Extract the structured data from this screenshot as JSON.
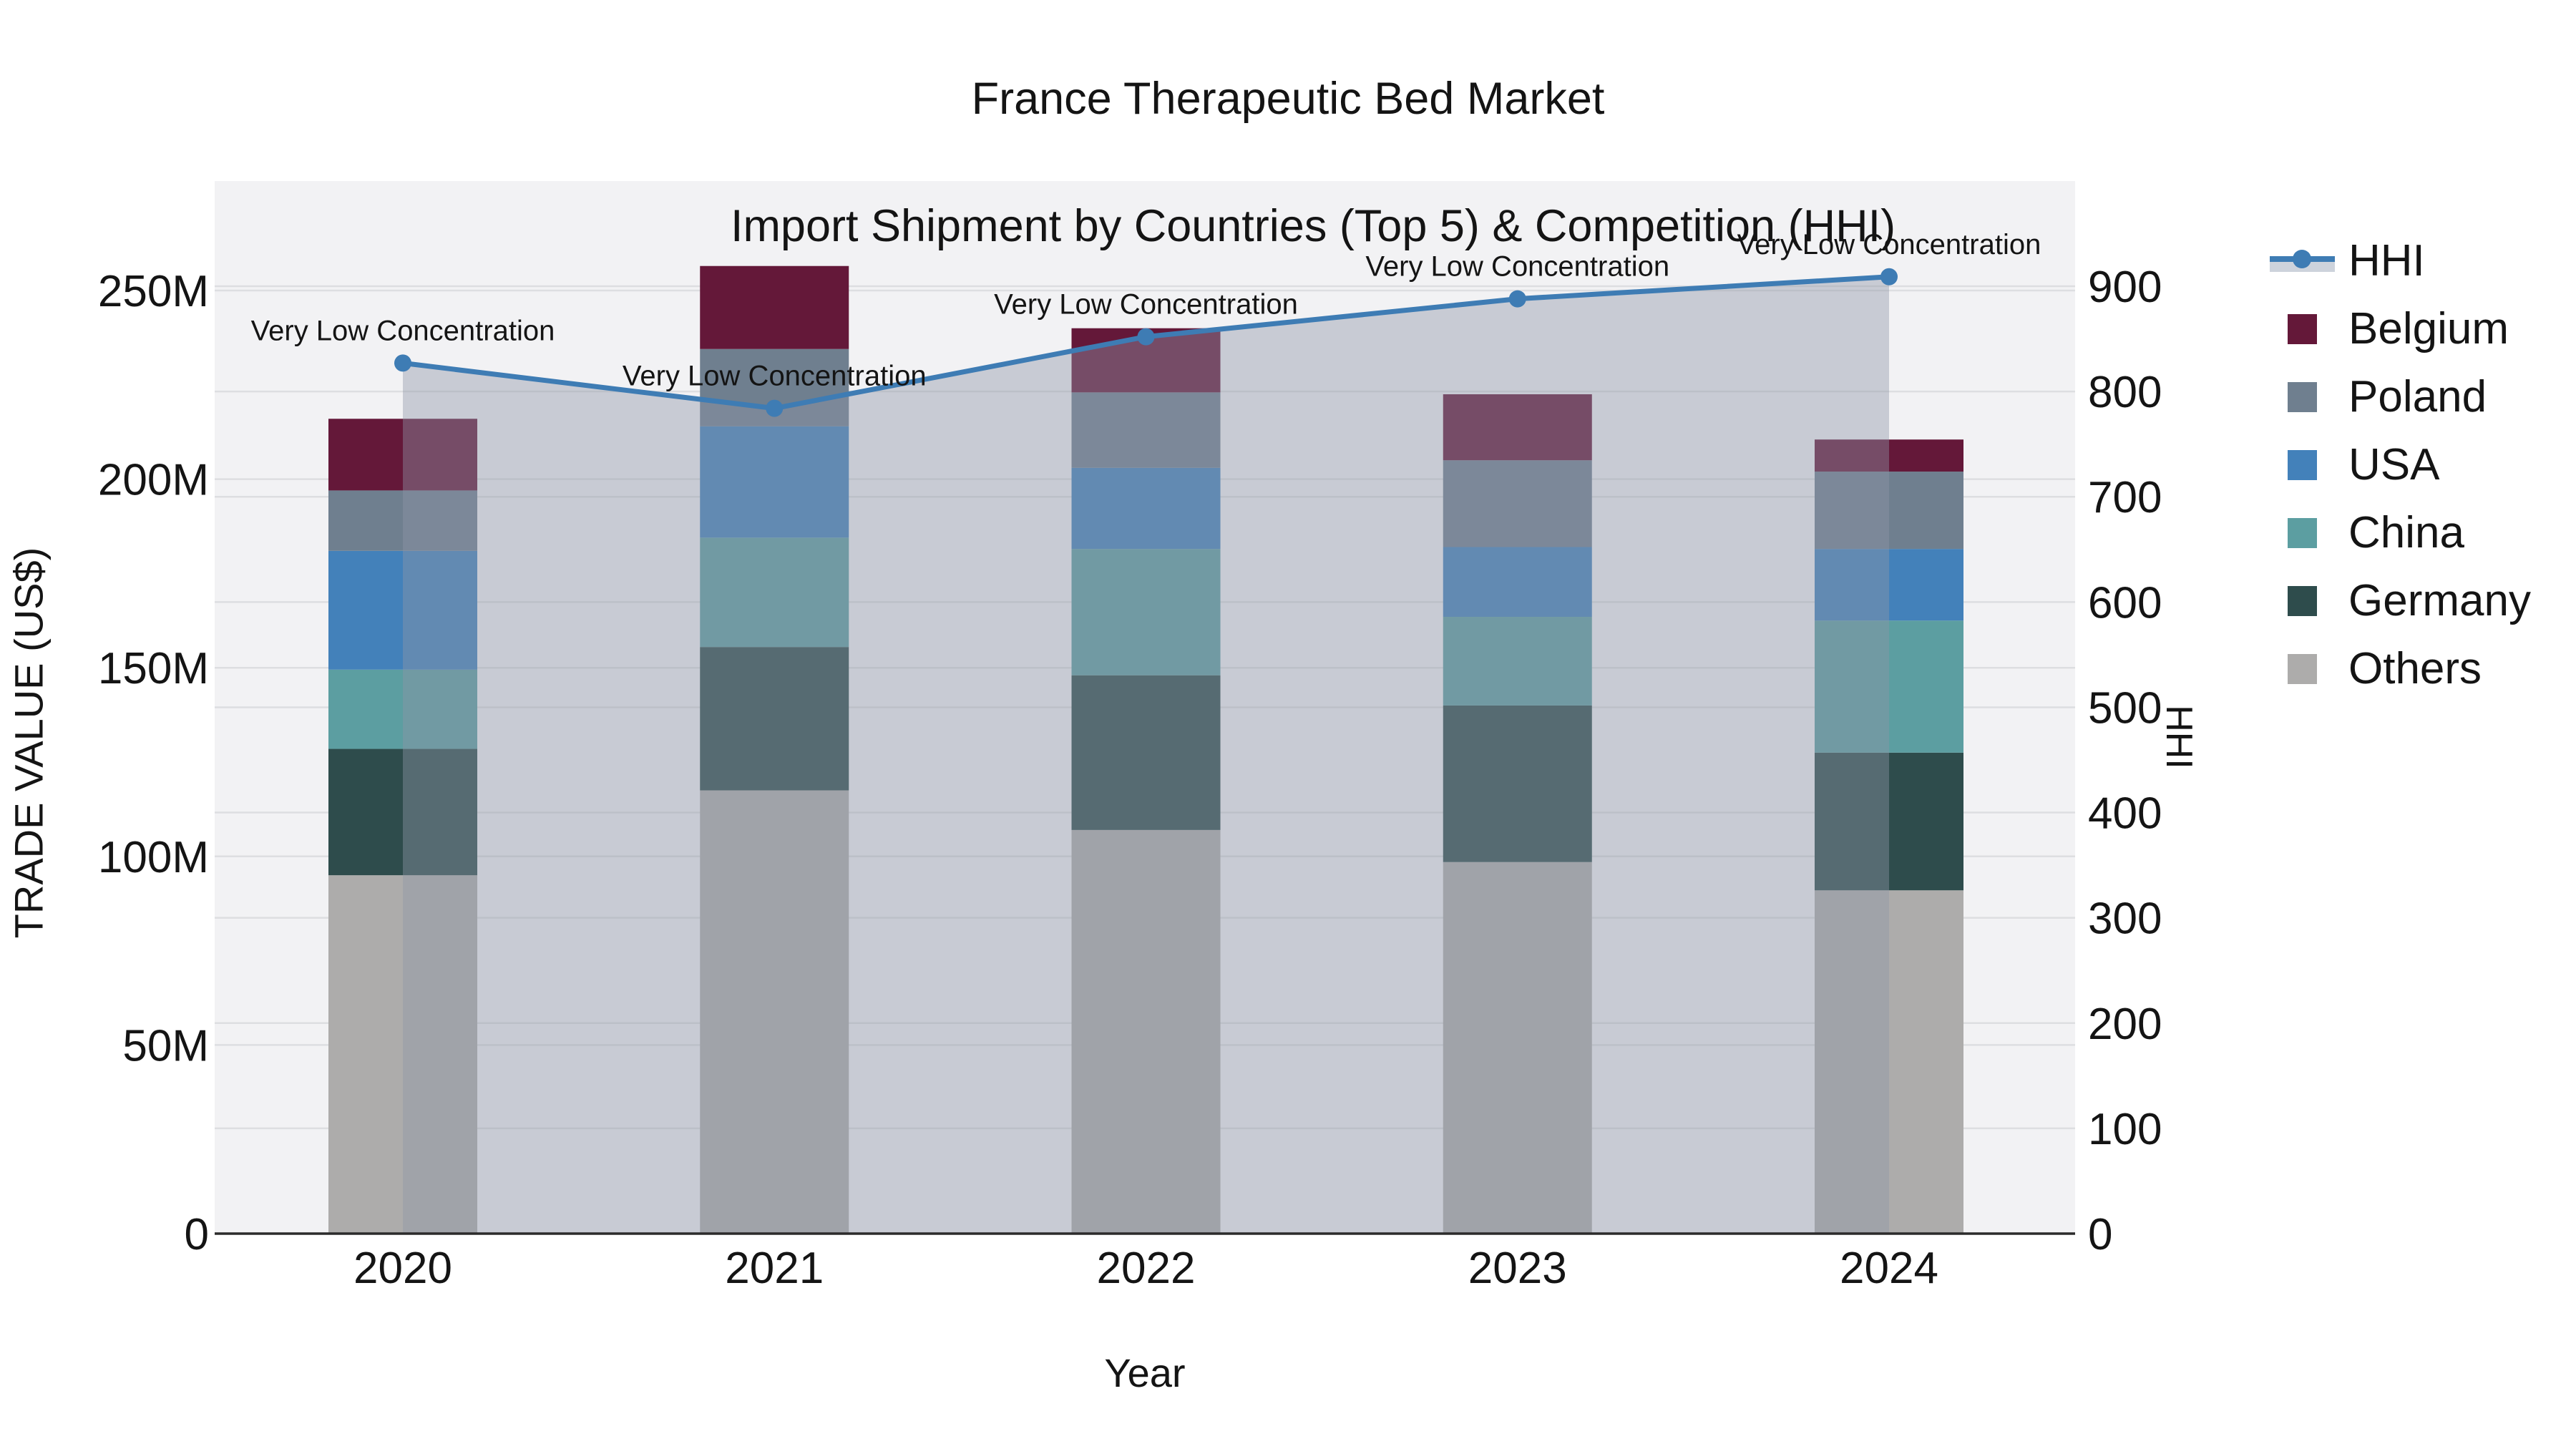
{
  "title": {
    "line1": "France Therapeutic Bed Market",
    "line2": "Import Shipment by Countries (Top 5) & Competition (HHI)"
  },
  "colors": {
    "figure_bg": "#ffffff",
    "plot_bg": "#f2f2f4",
    "grid": "#dddee1",
    "axis_line": "#2b2b2b",
    "text": "#141414",
    "hhi_line": "#3e7cb4",
    "hhi_marker": "#3e7cb4",
    "hhi_area": "rgba(142,151,168,0.42)",
    "legend_area_swatch": "#cdd3dc"
  },
  "chart_data": {
    "type": "bar+line",
    "title": "France Therapeutic Bed Market",
    "subtitle": "Import Shipment by Countries (Top 5) & Competition (HHI)",
    "categories": [
      "2020",
      "2021",
      "2022",
      "2023",
      "2024"
    ],
    "bar_unit": "trade value, million US$",
    "stack_order_bottom_to_top": [
      "Others",
      "Germany",
      "China",
      "USA",
      "Poland",
      "Belgium"
    ],
    "series": [
      {
        "name": "Belgium",
        "color": "#641839",
        "values": [
          19,
          22,
          17,
          17.5,
          8.5
        ]
      },
      {
        "name": "Poland",
        "color": "#6f7f8f",
        "values": [
          16,
          20.5,
          20,
          23,
          20.5
        ]
      },
      {
        "name": "USA",
        "color": "#4381ba",
        "values": [
          31.5,
          29.5,
          21.5,
          18.5,
          19
        ]
      },
      {
        "name": "China",
        "color": "#5c9ea1",
        "values": [
          21,
          29,
          33.5,
          23.5,
          35
        ]
      },
      {
        "name": "Germany",
        "color": "#2e4c4c",
        "values": [
          33.5,
          38,
          41,
          41.5,
          36.5
        ]
      },
      {
        "name": "Others",
        "color": "#adacab",
        "values": [
          95,
          117.5,
          107,
          98.5,
          91
        ]
      }
    ],
    "bar_totals": [
      216,
      256.5,
      240,
      222.5,
      210.5
    ],
    "hhi": {
      "name": "HHI",
      "axis": "right",
      "values": [
        827,
        784,
        852,
        888,
        909
      ]
    },
    "point_annotations": [
      "Very Low Concentration",
      "Very Low Concentration",
      "Very Low Concentration",
      "Very Low Concentration",
      "Very Low Concentration"
    ],
    "left_axis": {
      "title": "TRADE VALUE (US$)",
      "tick_labels": [
        "0",
        "50M",
        "100M",
        "150M",
        "200M",
        "250M"
      ],
      "tick_values": [
        0,
        50,
        100,
        150,
        200,
        250
      ],
      "range": [
        0,
        279
      ]
    },
    "right_axis": {
      "title": "HHI",
      "tick_values": [
        0,
        100,
        200,
        300,
        400,
        500,
        600,
        700,
        800,
        900
      ],
      "range": [
        0,
        1000
      ]
    },
    "x_axis": {
      "title": "Year"
    },
    "legend": {
      "position": "right",
      "items": [
        {
          "label": "HHI",
          "swatch": "line"
        },
        {
          "label": "Belgium",
          "swatch": "patch",
          "color": "#641839"
        },
        {
          "label": "Poland",
          "swatch": "patch",
          "color": "#6f7f8f"
        },
        {
          "label": "USA",
          "swatch": "patch",
          "color": "#4381ba"
        },
        {
          "label": "China",
          "swatch": "patch",
          "color": "#5c9ea1"
        },
        {
          "label": "Germany",
          "swatch": "patch",
          "color": "#2e4c4c"
        },
        {
          "label": "Others",
          "swatch": "patch",
          "color": "#adacab"
        }
      ]
    }
  }
}
